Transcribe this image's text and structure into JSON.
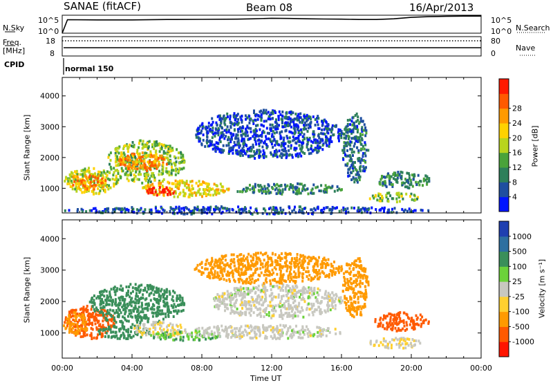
{
  "header": {
    "station": "SANAE (fitACF)",
    "beam": "Beam 08",
    "date": "16/Apr/2013"
  },
  "strip_labels": {
    "nsky": "N.Sky",
    "nsearch": "N.Search",
    "freq_line1": "Freq.",
    "freq_line2": "[MHz]",
    "nave": "Nave",
    "cpid": "CPID",
    "cpid_value": "normal 150",
    "nsky_ticks": [
      "10^5",
      "10^0"
    ],
    "nsearch_ticks": [
      "10^5",
      "10^0"
    ],
    "freq_ticks": [
      "18",
      "8"
    ],
    "nave_ticks": [
      "80",
      "0"
    ]
  },
  "colors": {
    "power_scale": [
      "#0015ff",
      "#1f4fa0",
      "#2d7f5a",
      "#4aa33a",
      "#b8d41e",
      "#ffd200",
      "#ff9a00",
      "#ff5a00",
      "#ff1a00"
    ],
    "velocity_scale": [
      "#1f3fb0",
      "#2d6fa0",
      "#3a8f5a",
      "#6cd23a",
      "#c8c8c0",
      "#ffd030",
      "#ff9a00",
      "#ff5a00",
      "#ff1500"
    ]
  },
  "chart_data": [
    {
      "type": "heatmap",
      "name": "power",
      "ylabel": "Slant Range [km]",
      "ylim": [
        200,
        4600
      ],
      "yticks": [
        1000,
        2000,
        3000,
        4000
      ],
      "colorbar_label": "Power [dB]",
      "colorbar_ticks": [
        4,
        8,
        12,
        16,
        20,
        24,
        28
      ],
      "blobs": [
        {
          "t0": 0.0,
          "t1": 3.2,
          "r0": 850,
          "r1": 1700,
          "v": 16
        },
        {
          "t0": 0.3,
          "t1": 2.6,
          "r0": 1000,
          "r1": 1500,
          "v": 22
        },
        {
          "t0": 2.5,
          "t1": 7.0,
          "r0": 1200,
          "r1": 2600,
          "v": 14
        },
        {
          "t0": 3.2,
          "t1": 6.0,
          "r0": 1600,
          "r1": 2200,
          "v": 22
        },
        {
          "t0": 4.5,
          "t1": 9.5,
          "r0": 750,
          "r1": 1300,
          "v": 18
        },
        {
          "t0": 4.8,
          "t1": 6.5,
          "r0": 800,
          "r1": 1100,
          "v": 28
        },
        {
          "t0": 9.5,
          "t1": 16.0,
          "r0": 850,
          "r1": 1200,
          "v": 10
        },
        {
          "t0": 16.0,
          "t1": 17.5,
          "r0": 1200,
          "r1": 3500,
          "v": 8
        },
        {
          "t0": 17.5,
          "t1": 20.5,
          "r0": 600,
          "r1": 900,
          "v": 14
        },
        {
          "t0": 18.0,
          "t1": 21.0,
          "r0": 1000,
          "r1": 1600,
          "v": 10
        },
        {
          "t0": 7.5,
          "t1": 16.0,
          "r0": 2000,
          "r1": 3600,
          "v": 6
        },
        {
          "t0": 0.0,
          "t1": 21.0,
          "r0": 200,
          "r1": 450,
          "v": 6
        }
      ]
    },
    {
      "type": "heatmap",
      "name": "velocity",
      "xlabel": "Time UT",
      "ylabel": "Slant Range [km]",
      "xlim": [
        0,
        24
      ],
      "xticks": [
        "00:00",
        "04:00",
        "08:00",
        "12:00",
        "16:00",
        "20:00",
        "00:00"
      ],
      "ylim": [
        200,
        4600
      ],
      "yticks": [
        1000,
        2000,
        3000,
        4000
      ],
      "colorbar_label": "Velocity [m s⁻¹]",
      "colorbar_ticks": [
        "1000",
        "500",
        "100",
        "25",
        "-25",
        "-100",
        "-500",
        "-1000"
      ],
      "blobs": [
        {
          "t0": 0.0,
          "t1": 3.0,
          "r0": 850,
          "r1": 1900,
          "v": -500
        },
        {
          "t0": 0.0,
          "t1": 1.5,
          "r0": 1000,
          "r1": 1700,
          "v": -100
        },
        {
          "t0": 1.5,
          "t1": 7.0,
          "r0": 1300,
          "r1": 2600,
          "v": 250
        },
        {
          "t0": 2.0,
          "t1": 5.0,
          "r0": 850,
          "r1": 1300,
          "v": 100
        },
        {
          "t0": 4.0,
          "t1": 7.0,
          "r0": 900,
          "r1": 1400,
          "v": -25
        },
        {
          "t0": 5.0,
          "t1": 9.0,
          "r0": 800,
          "r1": 1100,
          "v": 50
        },
        {
          "t0": 7.0,
          "t1": 16.0,
          "r0": 850,
          "r1": 1300,
          "v": 0
        },
        {
          "t0": 8.5,
          "t1": 16.0,
          "r0": 1500,
          "r1": 2600,
          "v": 0
        },
        {
          "t0": 16.0,
          "t1": 17.5,
          "r0": 1500,
          "r1": 3500,
          "v": -100
        },
        {
          "t0": 17.5,
          "t1": 20.5,
          "r0": 550,
          "r1": 900,
          "v": -25
        },
        {
          "t0": 17.8,
          "t1": 21.0,
          "r0": 1100,
          "r1": 1700,
          "v": -500
        },
        {
          "t0": 7.5,
          "t1": 16.0,
          "r0": 2600,
          "r1": 3600,
          "v": -100
        }
      ]
    },
    {
      "type": "line",
      "name": "n-sky",
      "x": [
        0,
        0.3,
        2,
        4,
        6,
        8,
        10,
        11,
        12,
        13,
        14,
        15,
        16,
        17,
        18,
        19,
        20,
        21,
        22,
        23,
        24
      ],
      "y": [
        0.0,
        0.75,
        0.74,
        0.74,
        0.76,
        0.77,
        0.78,
        0.8,
        0.83,
        0.82,
        0.8,
        0.79,
        0.78,
        0.76,
        0.76,
        0.8,
        0.88,
        0.92,
        0.94,
        0.95,
        0.95
      ]
    }
  ]
}
